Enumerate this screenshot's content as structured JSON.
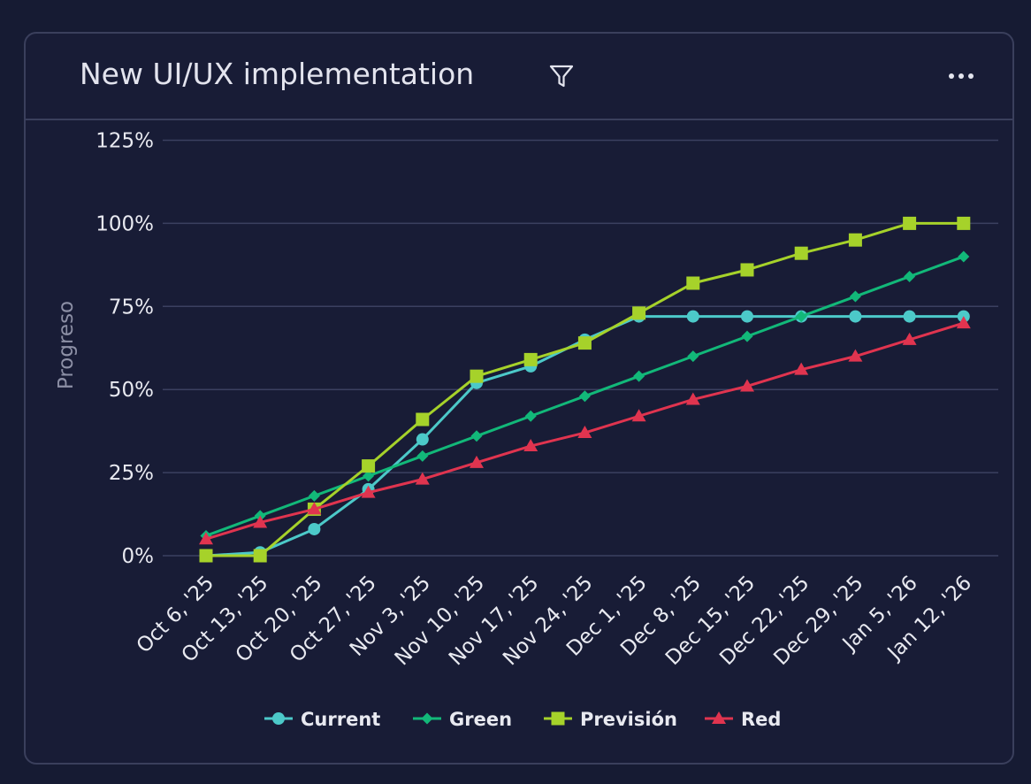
{
  "card": {
    "title": "New UI/UX implementation",
    "filter_icon": "filter-funnel-icon",
    "more_icon": "more-horizontal-icon"
  },
  "chart_data": {
    "type": "line",
    "title": "New UI/UX implementation",
    "ylabel": "Progreso",
    "xlabel": "",
    "ylim": [
      0,
      125
    ],
    "y_ticks": [
      0,
      25,
      50,
      75,
      100,
      125
    ],
    "y_tick_labels": [
      "0%",
      "25%",
      "50%",
      "75%",
      "100%",
      "125%"
    ],
    "grid": true,
    "legend_position": "bottom-center",
    "categories": [
      "Oct 6, '25",
      "Oct 13, '25",
      "Oct 20, '25",
      "Oct 27, '25",
      "Nov 3, '25",
      "Nov 10, '25",
      "Nov 17, '25",
      "Nov 24, '25",
      "Dec 1, '25",
      "Dec 8, '25",
      "Dec 15, '25",
      "Dec 22, '25",
      "Dec 29, '25",
      "Jan 5, '26",
      "Jan 12, '26"
    ],
    "series": [
      {
        "name": "Current",
        "color": "#4cc9c9",
        "marker": "circle",
        "values": [
          0,
          1,
          8,
          20,
          35,
          52,
          57,
          65,
          72,
          72,
          72,
          72,
          72,
          72,
          72
        ]
      },
      {
        "name": "Green",
        "color": "#12b879",
        "marker": "diamond",
        "values": [
          6,
          12,
          18,
          24,
          30,
          36,
          42,
          48,
          54,
          60,
          66,
          72,
          78,
          84,
          90
        ]
      },
      {
        "name": "Previsión",
        "color": "#a6d22a",
        "marker": "square",
        "values": [
          0,
          0,
          14,
          27,
          41,
          54,
          59,
          64,
          73,
          82,
          86,
          91,
          95,
          100,
          100
        ]
      },
      {
        "name": "Red",
        "color": "#e0344f",
        "marker": "triangle",
        "values": [
          5,
          10,
          14,
          19,
          23,
          28,
          33,
          37,
          42,
          47,
          51,
          56,
          60,
          65,
          70
        ]
      }
    ]
  }
}
